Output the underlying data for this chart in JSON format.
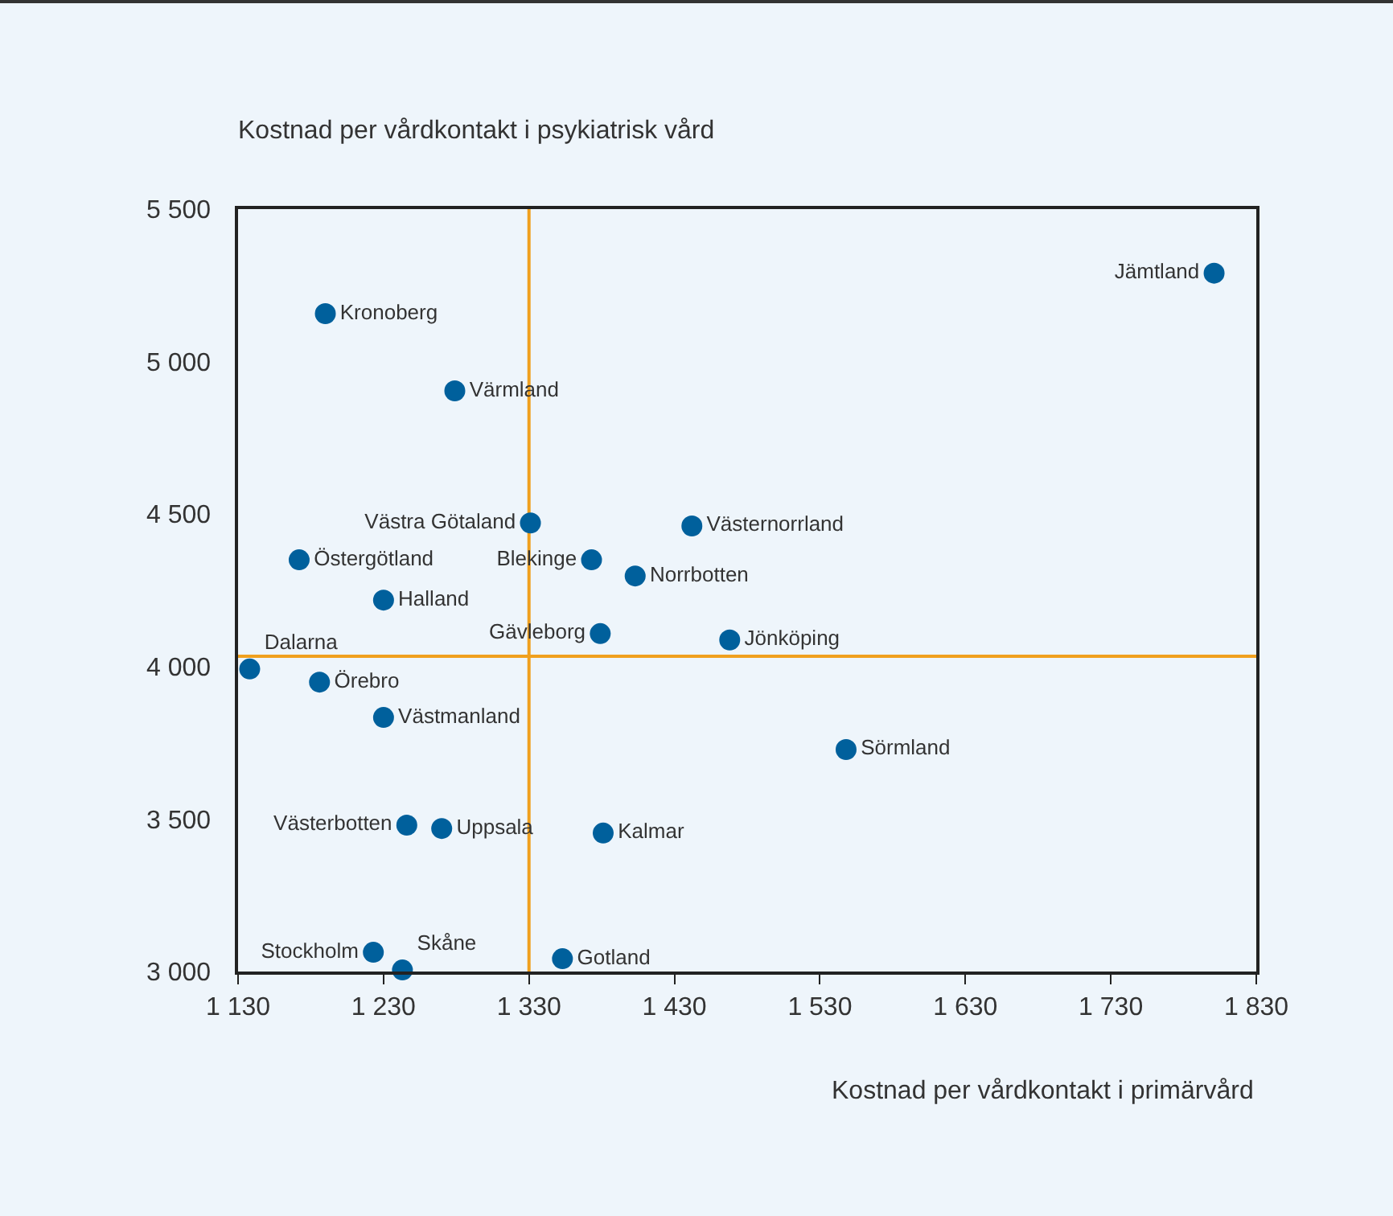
{
  "chart_data": {
    "type": "scatter",
    "xlabel": "Kostnad per vårdkontakt i primärvård",
    "ylabel": "Kostnad per vårdkontakt i psykiatrisk vård",
    "x": [
      1801,
      1190,
      1279,
      1331,
      1442,
      1172,
      1373,
      1403,
      1230,
      1379,
      1468,
      1138,
      1186,
      1230,
      1548,
      1246,
      1270,
      1381,
      1223,
      1243,
      1353
    ],
    "values": [
      5290,
      5157,
      4904,
      4471,
      4461,
      4350,
      4350,
      4297,
      4218,
      4108,
      4087,
      3992,
      3949,
      3833,
      3728,
      3480,
      3469,
      3454,
      3063,
      3005,
      3042
    ],
    "value_labels": [
      "Jämtland",
      "Kronoberg",
      "Värmland",
      "Västra Götaland",
      "Västernorrland",
      "Östergötland",
      "Blekinge",
      "Norrbotten",
      "Halland",
      "Gävleborg",
      "Jönköping",
      "Dalarna",
      "Örebro",
      "Västmanland",
      "Sörmland",
      "Västerbotten",
      "Uppsala",
      "Kalmar",
      "Stockholm",
      "Skåne",
      "Gotland"
    ],
    "color": "#00609c",
    "marker": "circle",
    "xlim": [
      1130,
      1830
    ],
    "xticks": [
      {
        "value": 1130,
        "label": "1 130"
      },
      {
        "value": 1230,
        "label": "1 230"
      },
      {
        "value": 1330,
        "label": "1 330"
      },
      {
        "value": 1430,
        "label": "1 430"
      },
      {
        "value": 1530,
        "label": "1 530"
      },
      {
        "value": 1630,
        "label": "1 630"
      },
      {
        "value": 1730,
        "label": "1 730"
      },
      {
        "value": 1830,
        "label": "1 830"
      }
    ],
    "ylim": [
      3000,
      5500
    ],
    "yticks": [
      {
        "value": 3000,
        "label": "3 000"
      },
      {
        "value": 3500,
        "label": "3 500"
      },
      {
        "value": 4000,
        "label": "4 000"
      },
      {
        "value": 4500,
        "label": "4 500"
      },
      {
        "value": 5000,
        "label": "5 000"
      },
      {
        "value": 5500,
        "label": "5 500"
      }
    ],
    "ref_lines": [
      {
        "axis": "x",
        "value": 1330,
        "color": "#f0a01e"
      },
      {
        "axis": "y",
        "value": 4034,
        "color": "#f0a01e"
      }
    ],
    "grid": false,
    "legend": false
  }
}
